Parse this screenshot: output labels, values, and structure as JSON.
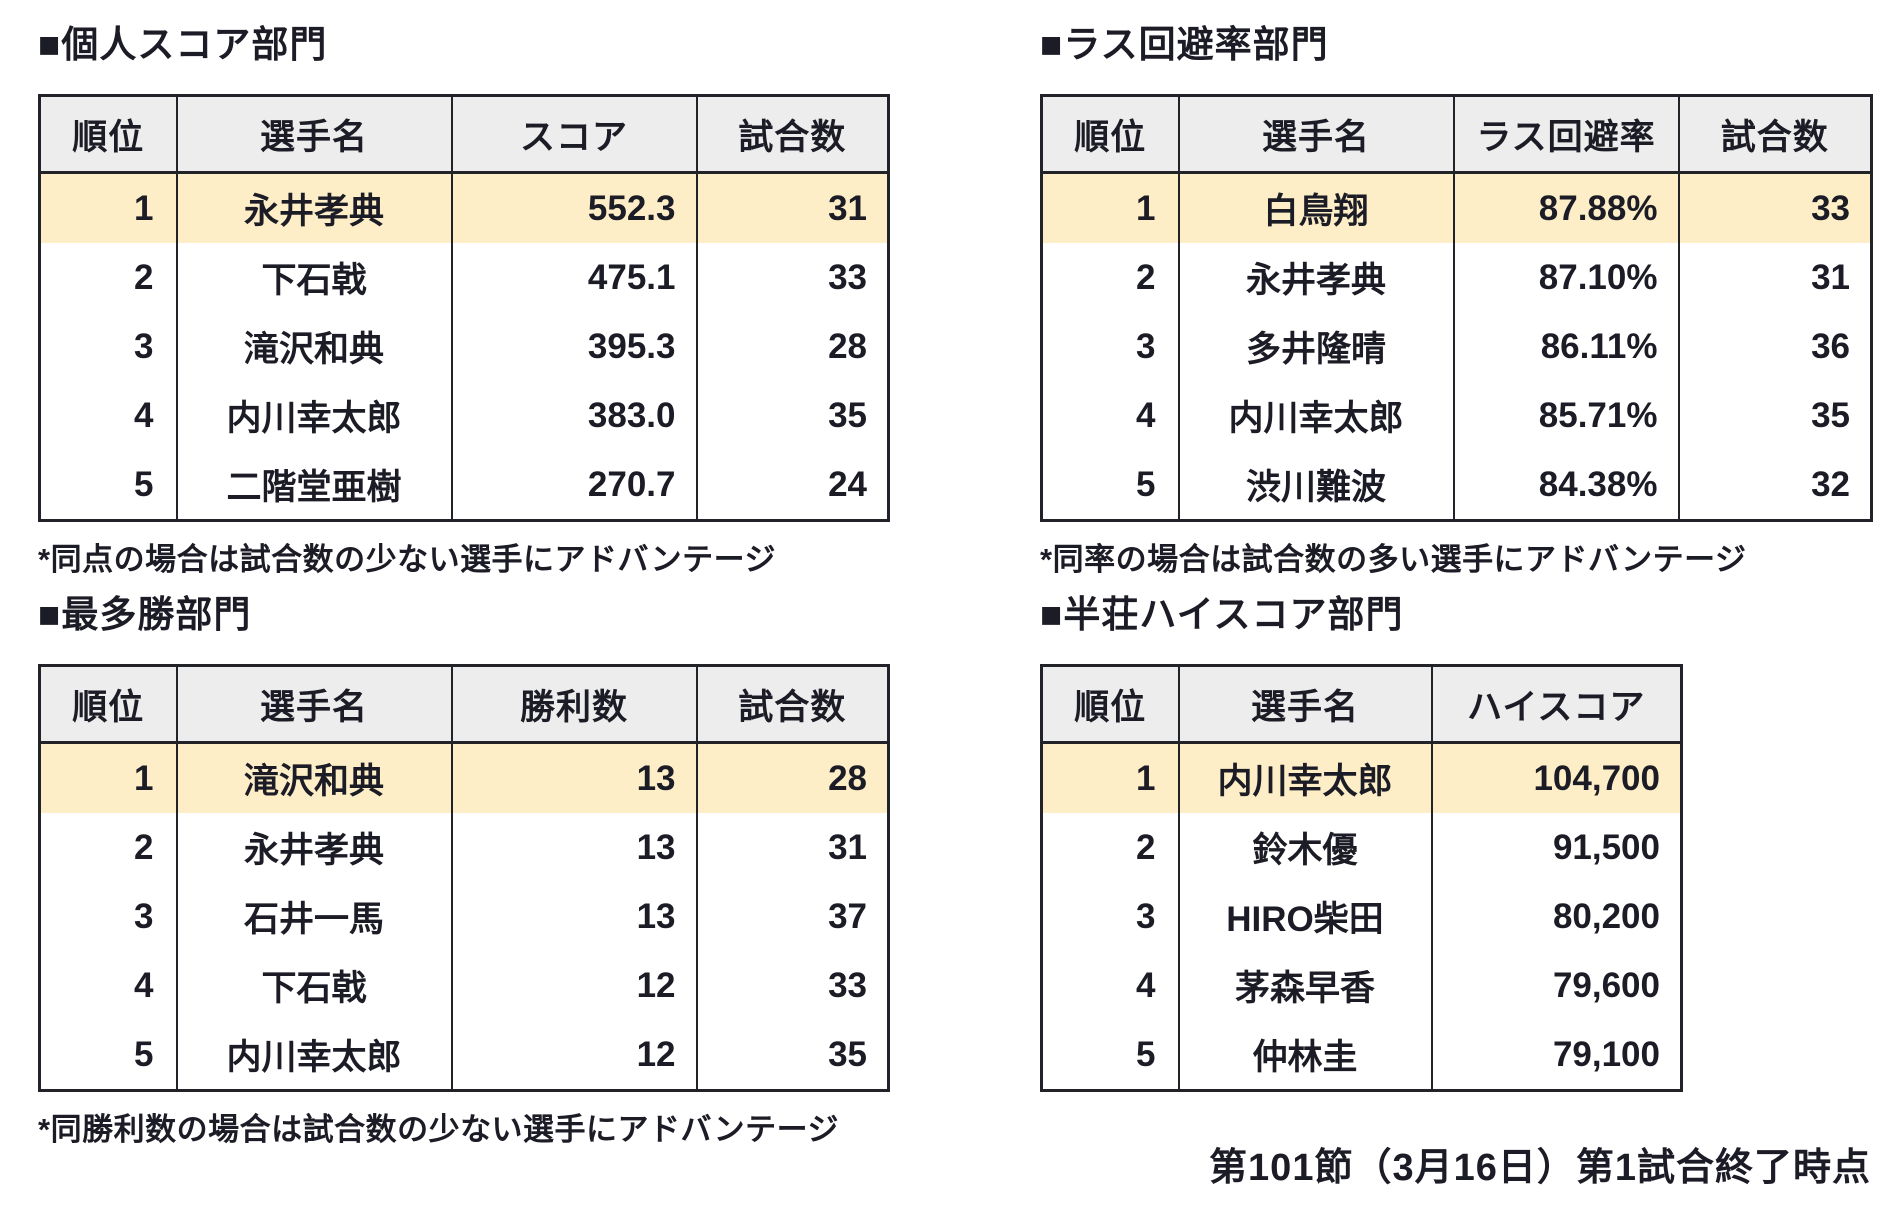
{
  "colors": {
    "header_bg": "#ededed",
    "highlight_bg": "#fdeec7",
    "border": "#222229",
    "text": "#1c1c26"
  },
  "footer_note": "第101節（3月16日）第1試合終了時点",
  "sections": [
    {
      "title": "■個人スコア部門",
      "columns": [
        "順位",
        "選手名",
        "スコア",
        "試合数"
      ],
      "rows": [
        [
          "1",
          "永井孝典",
          "552.3",
          "31"
        ],
        [
          "2",
          "下石戟",
          "475.1",
          "33"
        ],
        [
          "3",
          "滝沢和典",
          "395.3",
          "28"
        ],
        [
          "4",
          "内川幸太郎",
          "383.0",
          "35"
        ],
        [
          "5",
          "二階堂亜樹",
          "270.7",
          "24"
        ]
      ],
      "footnote": "*同点の場合は試合数の少ない選手にアドバンテージ"
    },
    {
      "title": "■ラス回避率部門",
      "columns": [
        "順位",
        "選手名",
        "ラス回避率",
        "試合数"
      ],
      "rows": [
        [
          "1",
          "白鳥翔",
          "87.88%",
          "33"
        ],
        [
          "2",
          "永井孝典",
          "87.10%",
          "31"
        ],
        [
          "3",
          "多井隆晴",
          "86.11%",
          "36"
        ],
        [
          "4",
          "内川幸太郎",
          "85.71%",
          "35"
        ],
        [
          "5",
          "渋川難波",
          "84.38%",
          "32"
        ]
      ],
      "footnote": "*同率の場合は試合数の多い選手にアドバンテージ"
    },
    {
      "title": "■最多勝部門",
      "columns": [
        "順位",
        "選手名",
        "勝利数",
        "試合数"
      ],
      "rows": [
        [
          "1",
          "滝沢和典",
          "13",
          "28"
        ],
        [
          "2",
          "永井孝典",
          "13",
          "31"
        ],
        [
          "3",
          "石井一馬",
          "13",
          "37"
        ],
        [
          "4",
          "下石戟",
          "12",
          "33"
        ],
        [
          "5",
          "内川幸太郎",
          "12",
          "35"
        ]
      ],
      "footnote": "*同勝利数の場合は試合数の少ない選手にアドバンテージ"
    },
    {
      "title": "■半荘ハイスコア部門",
      "columns": [
        "順位",
        "選手名",
        "ハイスコア"
      ],
      "rows": [
        [
          "1",
          "内川幸太郎",
          "104,700"
        ],
        [
          "2",
          "鈴木優",
          "91,500"
        ],
        [
          "3",
          "HIRO柴田",
          "80,200"
        ],
        [
          "4",
          "茅森早香",
          "79,600"
        ],
        [
          "5",
          "仲林圭",
          "79,100"
        ]
      ],
      "footnote": ""
    }
  ]
}
